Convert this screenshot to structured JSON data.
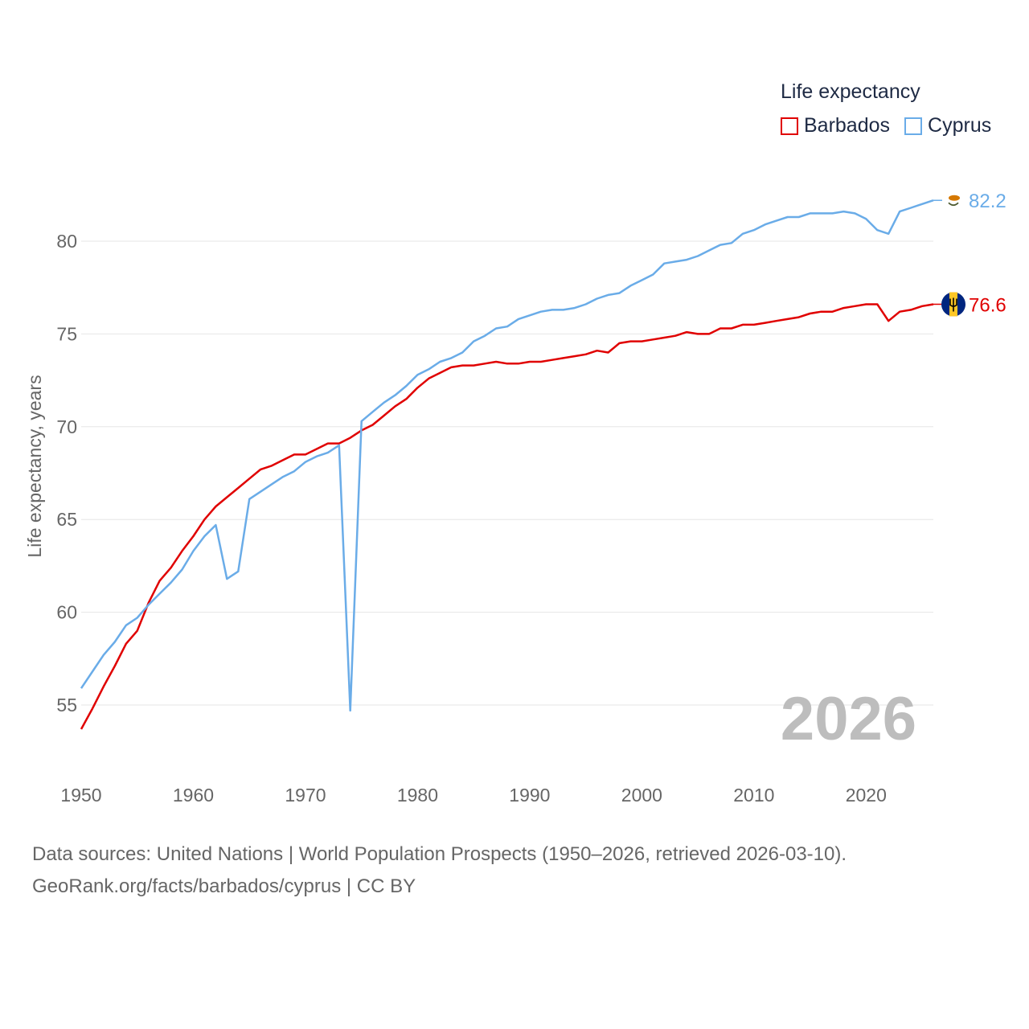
{
  "legend": {
    "title": "Life expectancy",
    "items": [
      {
        "label": "Barbados",
        "color": "#e00000"
      },
      {
        "label": "Cyprus",
        "color": "#6aace8"
      }
    ]
  },
  "year_label": "2026",
  "sources": {
    "line1": "Data sources: United Nations | World Population Prospects (1950–2026, retrieved 2026-03-10).",
    "line2": "GeoRank.org/facts/barbados/cyprus | CC BY"
  },
  "chart_data": {
    "type": "line",
    "title": "Life expectancy",
    "xlabel": "",
    "ylabel": "Life expectancy, years",
    "xlim": [
      1950,
      2026
    ],
    "ylim": [
      52,
      85
    ],
    "x_ticks": [
      1950,
      1960,
      1970,
      1980,
      1990,
      2000,
      2010,
      2020
    ],
    "y_ticks": [
      55,
      60,
      65,
      70,
      75,
      80
    ],
    "grid": true,
    "legend_position": "top-right",
    "x": [
      1950,
      1951,
      1952,
      1953,
      1954,
      1955,
      1956,
      1957,
      1958,
      1959,
      1960,
      1961,
      1962,
      1963,
      1964,
      1965,
      1966,
      1967,
      1968,
      1969,
      1970,
      1971,
      1972,
      1973,
      1974,
      1975,
      1976,
      1977,
      1978,
      1979,
      1980,
      1981,
      1982,
      1983,
      1984,
      1985,
      1986,
      1987,
      1988,
      1989,
      1990,
      1991,
      1992,
      1993,
      1994,
      1995,
      1996,
      1997,
      1998,
      1999,
      2000,
      2001,
      2002,
      2003,
      2004,
      2005,
      2006,
      2007,
      2008,
      2009,
      2010,
      2011,
      2012,
      2013,
      2014,
      2015,
      2016,
      2017,
      2018,
      2019,
      2020,
      2021,
      2022,
      2023,
      2024,
      2025,
      2026
    ],
    "series": [
      {
        "name": "Barbados",
        "color": "#e00000",
        "end_label": "76.6",
        "values": [
          53.7,
          54.8,
          56.0,
          57.1,
          58.3,
          59.0,
          60.5,
          61.7,
          62.4,
          63.3,
          64.1,
          65.0,
          65.7,
          66.2,
          66.7,
          67.2,
          67.7,
          67.9,
          68.2,
          68.5,
          68.5,
          68.8,
          69.1,
          69.1,
          69.4,
          69.8,
          70.1,
          70.6,
          71.1,
          71.5,
          72.1,
          72.6,
          72.9,
          73.2,
          73.3,
          73.3,
          73.4,
          73.5,
          73.4,
          73.4,
          73.5,
          73.5,
          73.6,
          73.7,
          73.8,
          73.9,
          74.1,
          74.0,
          74.5,
          74.6,
          74.6,
          74.7,
          74.8,
          74.9,
          75.1,
          75.0,
          75.0,
          75.3,
          75.3,
          75.5,
          75.5,
          75.6,
          75.7,
          75.8,
          75.9,
          76.1,
          76.2,
          76.2,
          76.4,
          76.5,
          76.6,
          76.6,
          75.7,
          76.2,
          76.3,
          76.5,
          76.6
        ]
      },
      {
        "name": "Cyprus",
        "color": "#6aace8",
        "end_label": "82.2",
        "values": [
          55.9,
          56.8,
          57.7,
          58.4,
          59.3,
          59.7,
          60.4,
          61.0,
          61.6,
          62.3,
          63.3,
          64.1,
          64.7,
          61.8,
          62.2,
          66.1,
          66.5,
          66.9,
          67.3,
          67.6,
          68.1,
          68.4,
          68.6,
          69.0,
          54.7,
          70.3,
          70.8,
          71.3,
          71.7,
          72.2,
          72.8,
          73.1,
          73.5,
          73.7,
          74.0,
          74.6,
          74.9,
          75.3,
          75.4,
          75.8,
          76.0,
          76.2,
          76.3,
          76.3,
          76.4,
          76.6,
          76.9,
          77.1,
          77.2,
          77.6,
          77.9,
          78.2,
          78.8,
          78.9,
          79.0,
          79.2,
          79.5,
          79.8,
          79.9,
          80.4,
          80.6,
          80.9,
          81.1,
          81.3,
          81.3,
          81.5,
          81.5,
          81.5,
          81.6,
          81.5,
          81.2,
          80.6,
          80.4,
          81.6,
          81.8,
          82.0,
          82.2
        ]
      }
    ]
  }
}
